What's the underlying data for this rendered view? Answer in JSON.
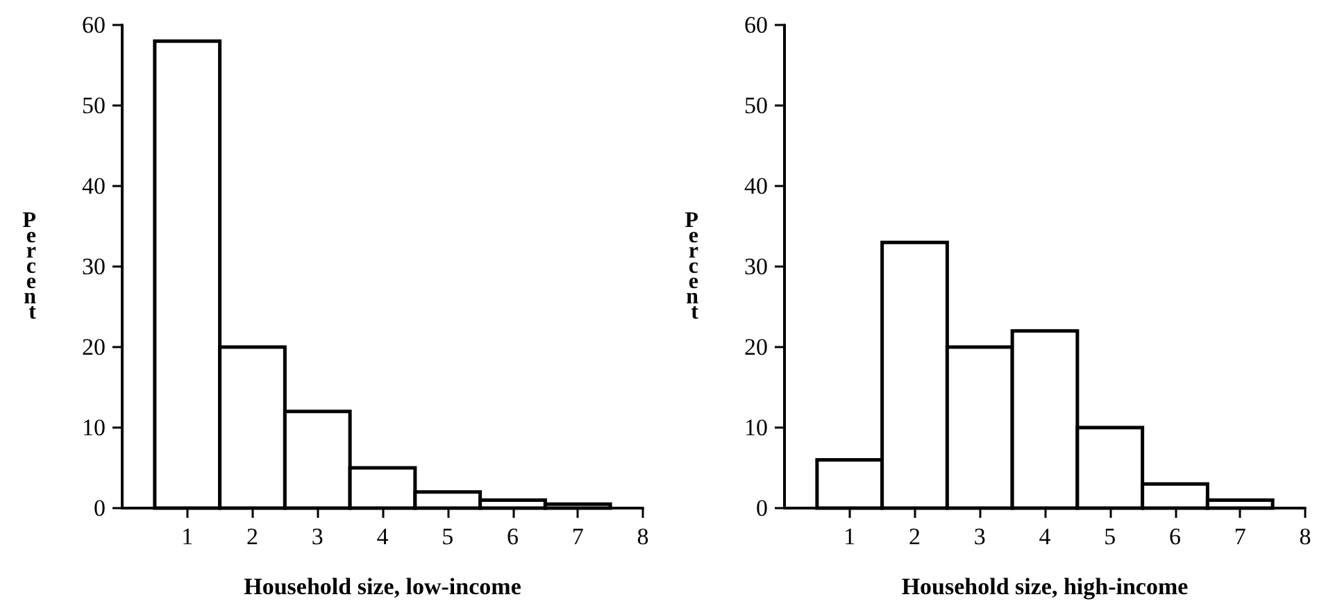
{
  "chart_data": [
    {
      "type": "histogram",
      "xlabel": "Household size, low-income",
      "ylabel": "Percent",
      "bins": [
        0.5,
        1.5,
        2.5,
        3.5,
        4.5,
        5.5,
        6.5,
        7.5
      ],
      "values": [
        58,
        20,
        12,
        5,
        2,
        1,
        0.5
      ],
      "xlim": [
        0,
        8
      ],
      "xticks": [
        1,
        2,
        3,
        4,
        5,
        6,
        7,
        8
      ],
      "ylim": [
        0,
        60
      ],
      "yticks": [
        0,
        10,
        20,
        30,
        40,
        50,
        60
      ]
    },
    {
      "type": "histogram",
      "xlabel": "Household size, high-income",
      "ylabel": "Percent",
      "bins": [
        0.5,
        1.5,
        2.5,
        3.5,
        4.5,
        5.5,
        6.5,
        7.5
      ],
      "values": [
        6,
        33,
        20,
        22,
        10,
        3,
        1
      ],
      "xlim": [
        0,
        8
      ],
      "xticks": [
        1,
        2,
        3,
        4,
        5,
        6,
        7,
        8
      ],
      "ylim": [
        0,
        60
      ],
      "yticks": [
        0,
        10,
        20,
        30,
        40,
        50,
        60
      ]
    }
  ]
}
